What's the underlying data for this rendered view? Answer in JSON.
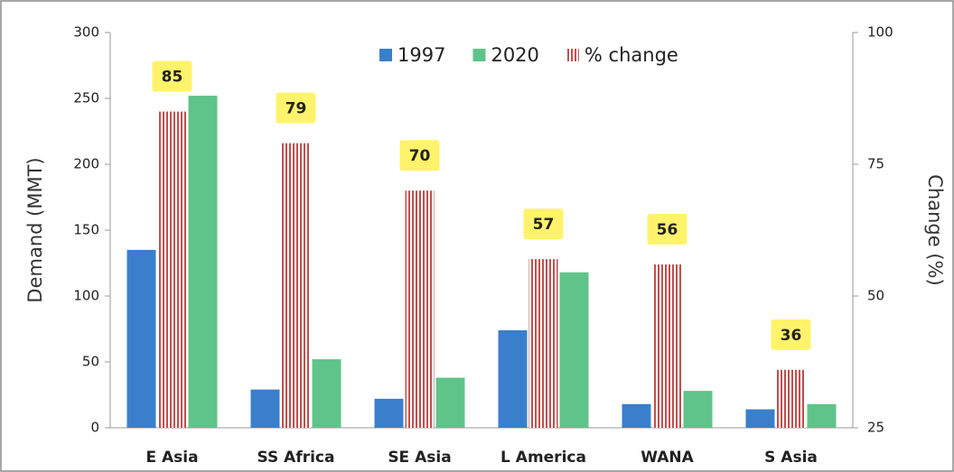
{
  "chart_data": {
    "type": "bar",
    "categories": [
      "E Asia",
      "SS Africa",
      "SE Asia",
      "L America",
      "WANA",
      "S Asia"
    ],
    "series": [
      {
        "name": "1997",
        "color": "#3a7fcb",
        "values": [
          135,
          29,
          22,
          74,
          18,
          14
        ]
      },
      {
        "name": "2020",
        "color": "#5fc489",
        "values": [
          252,
          52,
          38,
          118,
          28,
          18
        ]
      },
      {
        "name": "% change",
        "color": "#c0504d",
        "axis": "y2",
        "pattern": "vertical-stripes",
        "values": [
          85,
          79,
          70,
          57,
          56,
          36
        ]
      }
    ],
    "y_label": "Demand (MMT)",
    "y2_label": "Change (%)",
    "ylim": [
      0,
      300
    ],
    "yticks": [
      0,
      50,
      100,
      150,
      200,
      250,
      300
    ],
    "y2lim": [
      25,
      100
    ],
    "y2ticks": [
      25,
      50,
      75,
      100
    ],
    "value_label_color": "#fff36b",
    "grid": false,
    "legend": "top"
  }
}
